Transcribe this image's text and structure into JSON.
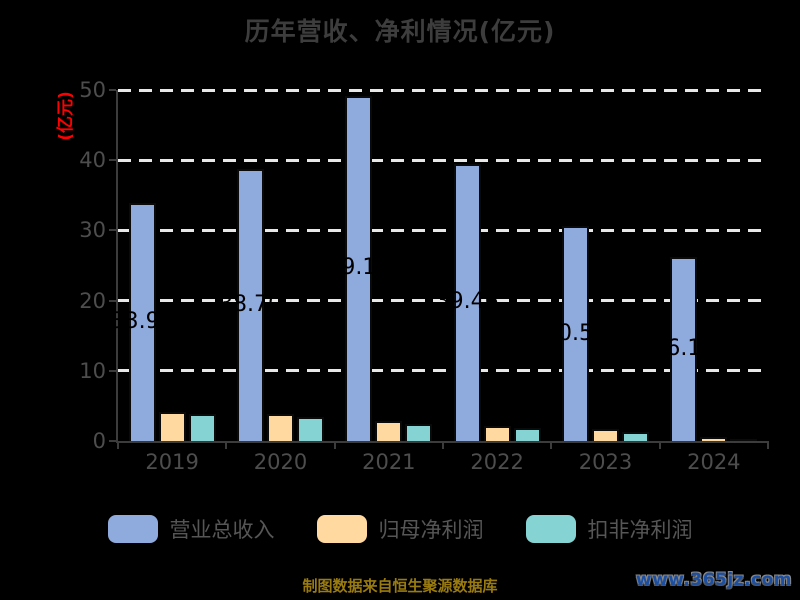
{
  "title": "历年营收、净利情况(亿元)",
  "y_axis": {
    "unit_label": "(亿元)",
    "ticks": [
      0,
      10,
      20,
      30,
      40,
      50
    ]
  },
  "chart_data": {
    "type": "bar",
    "title": "历年营收、净利情况(亿元)",
    "xlabel": "",
    "ylabel": "(亿元)",
    "ylim": [
      0,
      50
    ],
    "grid": "horizontal-dashed-white",
    "legend_position": "bottom",
    "categories": [
      "2019",
      "2020",
      "2021",
      "2022",
      "2023",
      "2024"
    ],
    "series": [
      {
        "key": "total-revenue",
        "name": "营业总收入",
        "color": "#8faadc",
        "values": [
          33.93,
          38.7,
          49.17,
          39.46,
          30.58,
          26.14
        ],
        "labels": [
          "33.93",
          "38.70",
          "49.17",
          "39.46",
          "30.58",
          "26.14"
        ]
      },
      {
        "key": "net-profit-attributable",
        "name": "归母净利润",
        "color": "#ffd9a0",
        "values": [
          4.2,
          3.8,
          2.8,
          2.1,
          1.7,
          0.55
        ]
      },
      {
        "key": "non-recurring-net-profit",
        "name": "扣非净利润",
        "color": "#85d3d3",
        "values": [
          3.9,
          3.4,
          2.4,
          1.85,
          1.3,
          0.3
        ]
      }
    ]
  },
  "footer": {
    "source_text": "制图数据来自恒生聚源数据库",
    "watermark": "www.365jz.com"
  }
}
